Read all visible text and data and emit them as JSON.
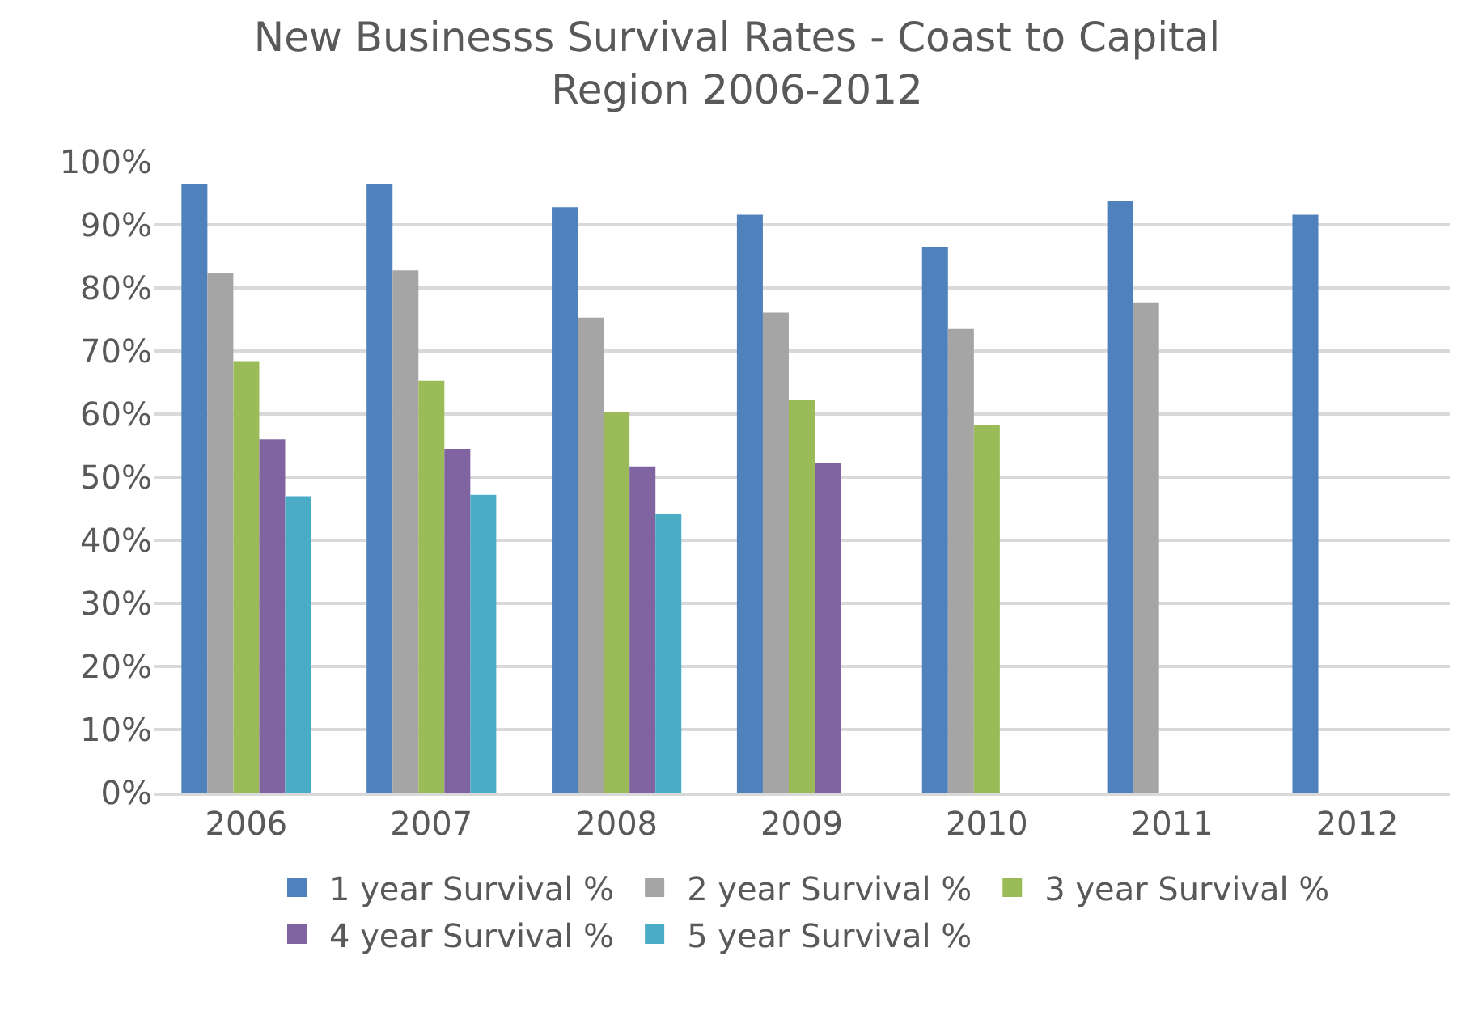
{
  "chart_data": {
    "type": "bar",
    "title": "New Businesss Survival Rates - Coast to Capital\nRegion 2006-2012",
    "categories": [
      "2006",
      "2007",
      "2008",
      "2009",
      "2010",
      "2011",
      "2012"
    ],
    "series": [
      {
        "name": "1 year Survival %",
        "color": "#4f81bd",
        "values": [
          96.4,
          96.4,
          92.8,
          91.6,
          86.5,
          93.8,
          91.6
        ]
      },
      {
        "name": "2 year Survival %",
        "color": "#a5a5a5",
        "values": [
          82.3,
          82.8,
          75.3,
          76.1,
          73.5,
          77.6,
          null
        ]
      },
      {
        "name": "3 year Survival %",
        "color": "#9bbb59",
        "values": [
          68.4,
          65.3,
          60.3,
          62.3,
          58.2,
          null,
          null
        ]
      },
      {
        "name": "4 year Survival %",
        "color": "#8064a2",
        "values": [
          56.0,
          54.5,
          51.7,
          52.2,
          null,
          null,
          null
        ]
      },
      {
        "name": "5 year Survival %",
        "color": "#4bacc6",
        "values": [
          47.0,
          47.2,
          44.2,
          null,
          null,
          null,
          null
        ]
      }
    ],
    "ylim": [
      0,
      100
    ],
    "yticks": [
      {
        "value": 0,
        "label": "0%"
      },
      {
        "value": 10,
        "label": "10%"
      },
      {
        "value": 20,
        "label": "20%"
      },
      {
        "value": 30,
        "label": "30%"
      },
      {
        "value": 40,
        "label": "40%"
      },
      {
        "value": 50,
        "label": "50%"
      },
      {
        "value": 60,
        "label": "60%"
      },
      {
        "value": 70,
        "label": "70%"
      },
      {
        "value": 80,
        "label": "80%"
      },
      {
        "value": 90,
        "label": "90%"
      },
      {
        "value": 100,
        "label": "100%"
      }
    ],
    "grid": "y",
    "legend": "bottom"
  }
}
